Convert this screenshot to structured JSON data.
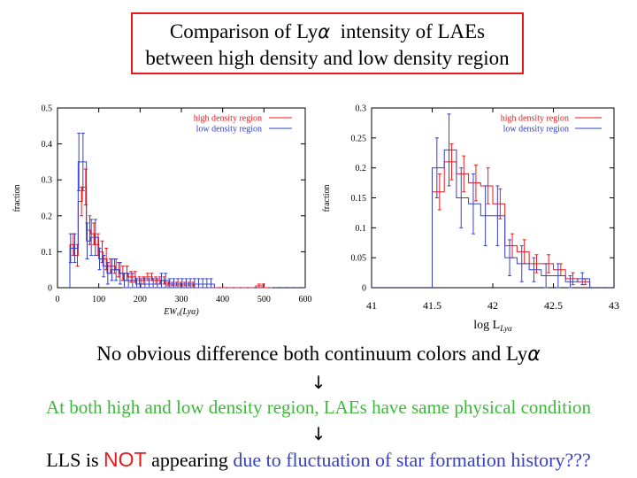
{
  "slide": {
    "title_line1_pre": "Comparison of Ly",
    "title_alpha": "α",
    "title_line1_post": "  intensity of LAEs",
    "title_line2": "between high density and low density region",
    "statement1_pre": "No obvious difference both continuum colors and Ly",
    "statement1_alpha": "α",
    "arrow": "↓",
    "statement2": "At both high and low density region, LAEs have same physical condition",
    "statement3_pre": "LLS is ",
    "statement3_not": "NOT",
    "statement3_mid": " appearing ",
    "statement3_post": "due to fluctuation of star formation history???"
  },
  "colors": {
    "high": "#e8191c",
    "low": "#3640c9",
    "green": "#3db83a"
  },
  "chart_data": [
    {
      "type": "histogram",
      "xlabel": "EW₀(Lyα)",
      "ylabel": "fraction",
      "xlim": [
        0,
        600
      ],
      "ylim": [
        0,
        0.5
      ],
      "xticks": [
        0,
        100,
        200,
        300,
        400,
        500,
        600
      ],
      "yticks": [
        0,
        0.1,
        0.2,
        0.3,
        0.4,
        0.5
      ],
      "xtick_labels": [
        "0",
        "100",
        "200",
        "300",
        "400",
        "500",
        "600"
      ],
      "ytick_labels": [
        "0",
        "0.1",
        "0.2",
        "0.3",
        "0.4",
        "0.5"
      ],
      "legend_position": "top-right",
      "series": [
        {
          "name": "high density region",
          "color": "#e8191c",
          "edges": [
            30,
            40,
            50,
            60,
            70,
            80,
            90,
            100,
            110,
            120,
            130,
            140,
            150,
            160,
            170,
            180,
            190,
            200,
            210,
            220,
            230,
            240,
            250,
            260,
            270,
            280,
            290,
            300,
            310,
            320,
            330,
            340,
            350,
            360,
            370,
            380,
            390,
            400,
            410,
            420,
            430,
            440,
            450,
            460,
            470,
            480,
            490,
            500,
            510,
            520
          ],
          "values": [
            0.12,
            0.09,
            0.24,
            0.28,
            0.16,
            0.15,
            0.12,
            0.1,
            0.08,
            0.06,
            0.06,
            0.05,
            0.04,
            0.04,
            0.03,
            0.03,
            0.02,
            0.02,
            0.03,
            0.03,
            0.02,
            0.02,
            0.02,
            0.01,
            0.01,
            0.01,
            0.01,
            0.01,
            0.01,
            0.01,
            0,
            0,
            0,
            0,
            0,
            0,
            0,
            0,
            0,
            0,
            0,
            0,
            0,
            0,
            0,
            0.005,
            0.005,
            0,
            0
          ],
          "errors": [
            0.03,
            0.03,
            0.04,
            0.05,
            0.04,
            0.03,
            0.03,
            0.03,
            0.03,
            0.02,
            0.02,
            0.02,
            0.02,
            0.02,
            0.015,
            0.015,
            0.01,
            0.01,
            0.01,
            0.01,
            0.01,
            0.01,
            0.01,
            0.005,
            0.005,
            0.005,
            0.005,
            0.005,
            0.005,
            0.005,
            0,
            0,
            0,
            0,
            0,
            0,
            0,
            0,
            0,
            0,
            0,
            0,
            0,
            0,
            0,
            0.005,
            0.005,
            0,
            0
          ]
        },
        {
          "name": "low density region",
          "color": "#3640c9",
          "edges": [
            30,
            40,
            50,
            60,
            70,
            80,
            90,
            100,
            110,
            120,
            130,
            140,
            150,
            160,
            170,
            180,
            190,
            200,
            210,
            220,
            230,
            240,
            250,
            260,
            270,
            280,
            290,
            300,
            310,
            320,
            330,
            340,
            350,
            360,
            370,
            380
          ],
          "values": [
            0.11,
            0.11,
            0.35,
            0.35,
            0.13,
            0.14,
            0.14,
            0.08,
            0.06,
            0.04,
            0.05,
            0.05,
            0.04,
            0.02,
            0.02,
            0.02,
            0.01,
            0.01,
            0.01,
            0.01,
            0.01,
            0.01,
            0.02,
            0.02,
            0.01,
            0.01,
            0.01,
            0.01,
            0.01,
            0.01,
            0.01,
            0.01,
            0.01,
            0.01,
            0.01
          ],
          "errors": [
            0.04,
            0.04,
            0.08,
            0.08,
            0.05,
            0.05,
            0.05,
            0.03,
            0.03,
            0.03,
            0.03,
            0.03,
            0.03,
            0.02,
            0.02,
            0.02,
            0.015,
            0.015,
            0.015,
            0.015,
            0.015,
            0.015,
            0.02,
            0.02,
            0.015,
            0.015,
            0.015,
            0.015,
            0.015,
            0.015,
            0.015,
            0.015,
            0.015,
            0.015,
            0.015
          ]
        }
      ]
    },
    {
      "type": "histogram",
      "xlabel": "log L",
      "xlabel_sub": "Lyα",
      "ylabel": "fraction",
      "xlim": [
        41,
        43
      ],
      "ylim": [
        0,
        0.3
      ],
      "xticks": [
        41,
        41.5,
        42,
        42.5,
        43
      ],
      "yticks": [
        0,
        0.05,
        0.1,
        0.15,
        0.2,
        0.25,
        0.3
      ],
      "xtick_labels": [
        "41",
        "41.5",
        "42",
        "42.5",
        "43"
      ],
      "ytick_labels": [
        "0",
        "0.05",
        "0.1",
        "0.15",
        "0.2",
        "0.25",
        "0.3"
      ],
      "legend_position": "top-right",
      "series": [
        {
          "name": "high density region",
          "color": "#e8191c",
          "edges": [
            41.5,
            41.6,
            41.7,
            41.8,
            41.9,
            42.0,
            42.1,
            42.2,
            42.3,
            42.4,
            42.5,
            42.6,
            42.7,
            42.8
          ],
          "values": [
            0.16,
            0.21,
            0.19,
            0.175,
            0.17,
            0.14,
            0.07,
            0.06,
            0.04,
            0.04,
            0.03,
            0.015,
            0.01
          ],
          "errors": [
            0.03,
            0.03,
            0.03,
            0.03,
            0.03,
            0.025,
            0.02,
            0.02,
            0.015,
            0.015,
            0.01,
            0.01,
            0.005
          ]
        },
        {
          "name": "low density region",
          "color": "#3640c9",
          "edges": [
            41.5,
            41.6,
            41.7,
            41.8,
            41.9,
            42.0,
            42.1,
            42.2,
            42.3,
            42.4,
            42.5,
            42.6,
            42.7,
            42.8
          ],
          "values": [
            0.2,
            0.23,
            0.15,
            0.14,
            0.12,
            0.12,
            0.05,
            0.04,
            0.03,
            0.02,
            0.02,
            0.01,
            0.015
          ],
          "errors": [
            0.05,
            0.06,
            0.05,
            0.05,
            0.05,
            0.05,
            0.03,
            0.03,
            0.02,
            0.02,
            0.02,
            0.01,
            0.01
          ]
        }
      ]
    }
  ]
}
